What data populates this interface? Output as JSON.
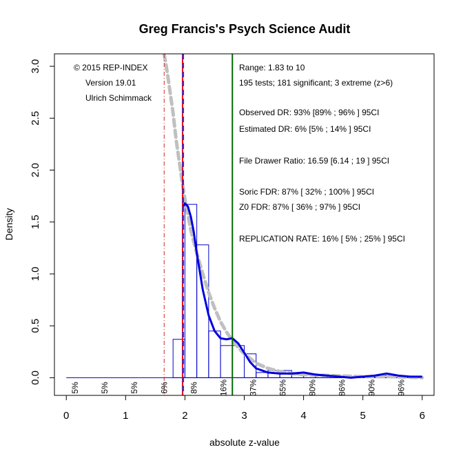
{
  "chart_data": {
    "type": "bar",
    "title": "Greg Francis's Psych Science Audit",
    "xlabel": "absolute z-value",
    "ylabel": "Density",
    "xlim": [
      -0.2,
      6.2
    ],
    "ylim": [
      -0.17,
      3.12
    ],
    "x_ticks": [
      "0",
      "1",
      "2",
      "3",
      "4",
      "5",
      "6"
    ],
    "y_ticks": [
      "0.0",
      "0.5",
      "1.0",
      "1.5",
      "2.0",
      "2.5",
      "3.0"
    ],
    "histogram": {
      "bin_width": 0.2,
      "bins": [
        {
          "x0": 1.8,
          "density": 0.37
        },
        {
          "x0": 2.0,
          "density": 1.67
        },
        {
          "x0": 2.2,
          "density": 1.28
        },
        {
          "x0": 2.4,
          "density": 0.45
        },
        {
          "x0": 2.6,
          "density": 0.31
        },
        {
          "x0": 2.8,
          "density": 0.31
        },
        {
          "x0": 3.0,
          "density": 0.23
        },
        {
          "x0": 3.2,
          "density": 0.05
        },
        {
          "x0": 3.4,
          "density": 0.07
        },
        {
          "x0": 3.6,
          "density": 0.07
        },
        {
          "x0": 3.8,
          "density": 0.03
        },
        {
          "x0": 4.0,
          "density": 0.03
        },
        {
          "x0": 4.2,
          "density": 0.02
        },
        {
          "x0": 4.4,
          "density": 0.01
        },
        {
          "x0": 4.6,
          "density": 0.01
        },
        {
          "x0": 4.8,
          "density": 0.01
        },
        {
          "x0": 5.0,
          "density": 0.01
        },
        {
          "x0": 5.2,
          "density": 0.02
        },
        {
          "x0": 5.4,
          "density": 0.02
        },
        {
          "x0": 5.6,
          "density": 0.01
        }
      ]
    },
    "density_curve": {
      "x": [
        1.97,
        2.0,
        2.05,
        2.1,
        2.15,
        2.2,
        2.3,
        2.4,
        2.5,
        2.6,
        2.7,
        2.8,
        2.9,
        3.0,
        3.1,
        3.2,
        3.4,
        3.6,
        3.8,
        4.0,
        4.2,
        4.4,
        4.6,
        4.8,
        5.0,
        5.2,
        5.4,
        5.6,
        5.8,
        6.0
      ],
      "y": [
        1.65,
        1.68,
        1.65,
        1.55,
        1.4,
        1.2,
        0.85,
        0.6,
        0.45,
        0.38,
        0.37,
        0.38,
        0.33,
        0.24,
        0.15,
        0.09,
        0.05,
        0.04,
        0.04,
        0.05,
        0.03,
        0.02,
        0.01,
        0.0,
        0.01,
        0.02,
        0.04,
        0.02,
        0.01,
        0.01
      ]
    },
    "fitted_curve": {
      "x": [
        1.65,
        1.7,
        1.75,
        1.8,
        1.85,
        1.9,
        1.95,
        2.0,
        2.1,
        2.2,
        2.3,
        2.4,
        2.5,
        2.6,
        2.7,
        2.8,
        2.9,
        3.0,
        3.2,
        3.4,
        3.6,
        3.8,
        4.0,
        4.5,
        5.0,
        5.5,
        6.0
      ],
      "y": [
        3.12,
        2.95,
        2.75,
        2.55,
        2.3,
        2.1,
        1.9,
        1.72,
        1.42,
        1.2,
        1.0,
        0.82,
        0.67,
        0.54,
        0.44,
        0.36,
        0.29,
        0.23,
        0.14,
        0.09,
        0.06,
        0.04,
        0.03,
        0.02,
        0.01,
        0.01,
        0.0
      ]
    },
    "vertical_lines": [
      {
        "x": 1.65,
        "color": "#cc2222",
        "style": "dashdot"
      },
      {
        "x": 1.96,
        "color": "#ff0000",
        "style": "solid"
      },
      {
        "x": 1.97,
        "color": "#2233dd",
        "style": "dashed"
      },
      {
        "x": 2.8,
        "color": "#006600",
        "style": "solid"
      }
    ],
    "bottom_labels": [
      {
        "x": 0.15,
        "text": "5%"
      },
      {
        "x": 0.65,
        "text": "5%"
      },
      {
        "x": 1.15,
        "text": "5%"
      },
      {
        "x": 1.65,
        "text": "6%"
      },
      {
        "x": 2.15,
        "text": "8%"
      },
      {
        "x": 2.65,
        "text": "16%"
      },
      {
        "x": 3.15,
        "text": "37%"
      },
      {
        "x": 3.65,
        "text": "65%"
      },
      {
        "x": 4.15,
        "text": "80%"
      },
      {
        "x": 4.65,
        "text": "86%"
      },
      {
        "x": 5.15,
        "text": "90%"
      },
      {
        "x": 5.65,
        "text": "96%"
      }
    ],
    "legend_left": [
      "© 2015 REP-INDEX",
      "Version 19.01",
      "Ulrich Schimmack"
    ],
    "annotations": [
      "Range: 1.83 to 10",
      "195 tests; 181 significant; 3 extreme (z>6)",
      "Observed DR: 93% [89% ; 96% ] 95CI",
      "Estimated DR: 6% [5% ; 14% ] 95CI",
      "File Drawer Ratio: 16.59 [6.14 ; 19 ] 95CI",
      "Soric FDR: 87% [ 32% ; 100% ] 95CI",
      "Z0 FDR: 87% [ 36% ; 97% ] 95CI",
      "REPLICATION RATE: 16% [ 5% ; 25% ] 95CI"
    ],
    "colors": {
      "bars": "#0000cc",
      "density_curve": "#0000dd",
      "fitted_curve": "#c0c0c0",
      "z_crit": "#ff0000",
      "mean_line": "#006600",
      "dashdot_line": "#cc2222"
    },
    "grid": false
  }
}
